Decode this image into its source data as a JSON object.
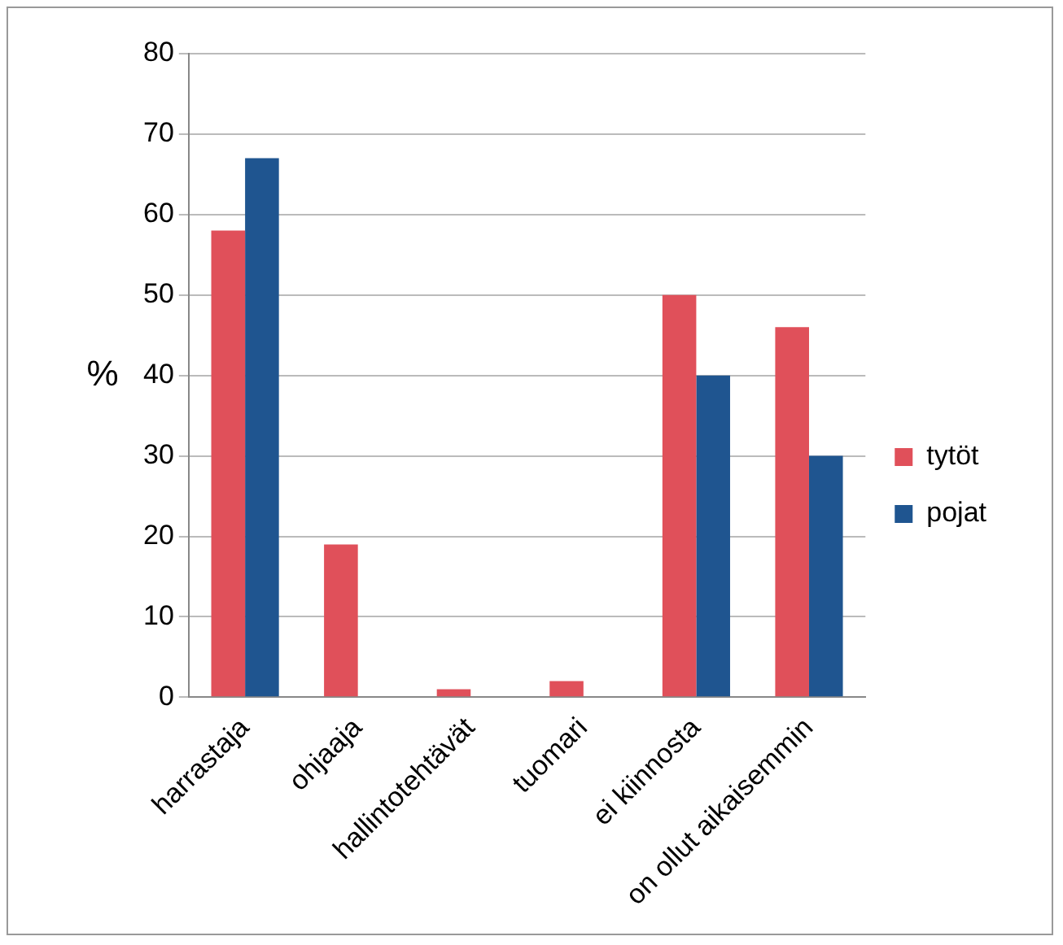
{
  "chart_data": {
    "type": "bar",
    "ylabel": "%",
    "categories": [
      "harrastaja",
      "ohjaaja",
      "hallintotehtävät",
      "tuomari",
      "ei kiinnosta",
      "on ollut aikaisemmin"
    ],
    "series": [
      {
        "name": "tytöt",
        "color": "#e0505a",
        "values": [
          58,
          19,
          1,
          2,
          50,
          46
        ]
      },
      {
        "name": "pojat",
        "color": "#1f5590",
        "values": [
          67,
          0,
          0,
          0,
          40,
          30
        ]
      }
    ],
    "ylim": [
      0,
      80
    ],
    "yticks": [
      0,
      10,
      20,
      30,
      40,
      50,
      60,
      70,
      80
    ],
    "grid": "y",
    "legend": "right"
  }
}
